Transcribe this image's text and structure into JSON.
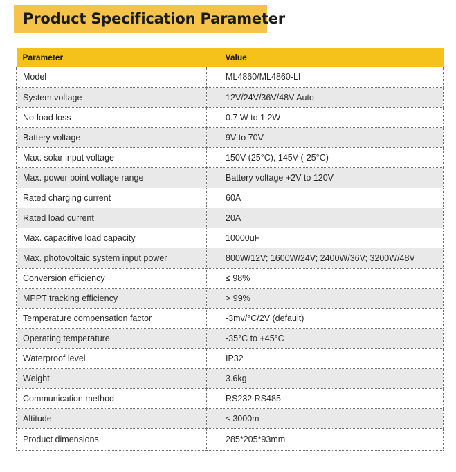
{
  "title": "Product Specification Parameter",
  "table": {
    "headers": [
      "Parameter",
      "Value"
    ],
    "rows": [
      [
        "Model",
        "ML4860/ML4860-LI"
      ],
      [
        "System voltage",
        "12V/24V/36V/48V  Auto"
      ],
      [
        "No-load loss",
        "0.7 W to 1.2W"
      ],
      [
        "Battery voltage",
        "9V to 70V"
      ],
      [
        "Max. solar input voltage",
        "150V (25°C), 145V (-25°C)"
      ],
      [
        "Max. power point voltage range",
        "Battery voltage +2V to 120V"
      ],
      [
        "Rated charging current",
        "60A"
      ],
      [
        "Rated load current",
        "20A"
      ],
      [
        "Max. capacitive load capacity",
        "10000uF"
      ],
      [
        "Max. photovoltaic system input power",
        "800W/12V; 1600W/24V; 2400W/36V; 3200W/48V"
      ],
      [
        "Conversion efficiency",
        "≤ 98%"
      ],
      [
        "MPPT tracking efficiency",
        "> 99%"
      ],
      [
        "Temperature compensation factor",
        "-3mv/°C/2V (default)"
      ],
      [
        "Operating temperature",
        "-35°C to +45°C"
      ],
      [
        "Waterproof level",
        "IP32"
      ],
      [
        "Weight",
        "3.6kg"
      ],
      [
        "Communication method",
        "RS232  RS485"
      ],
      [
        "Altitude",
        "≤ 3000m"
      ],
      [
        "Product dimensions",
        "285*205*93mm"
      ]
    ]
  },
  "colors": {
    "title_banner": "#f6c34a",
    "header_row": "#f5c21b",
    "alt_row": "#e9e9e9"
  }
}
